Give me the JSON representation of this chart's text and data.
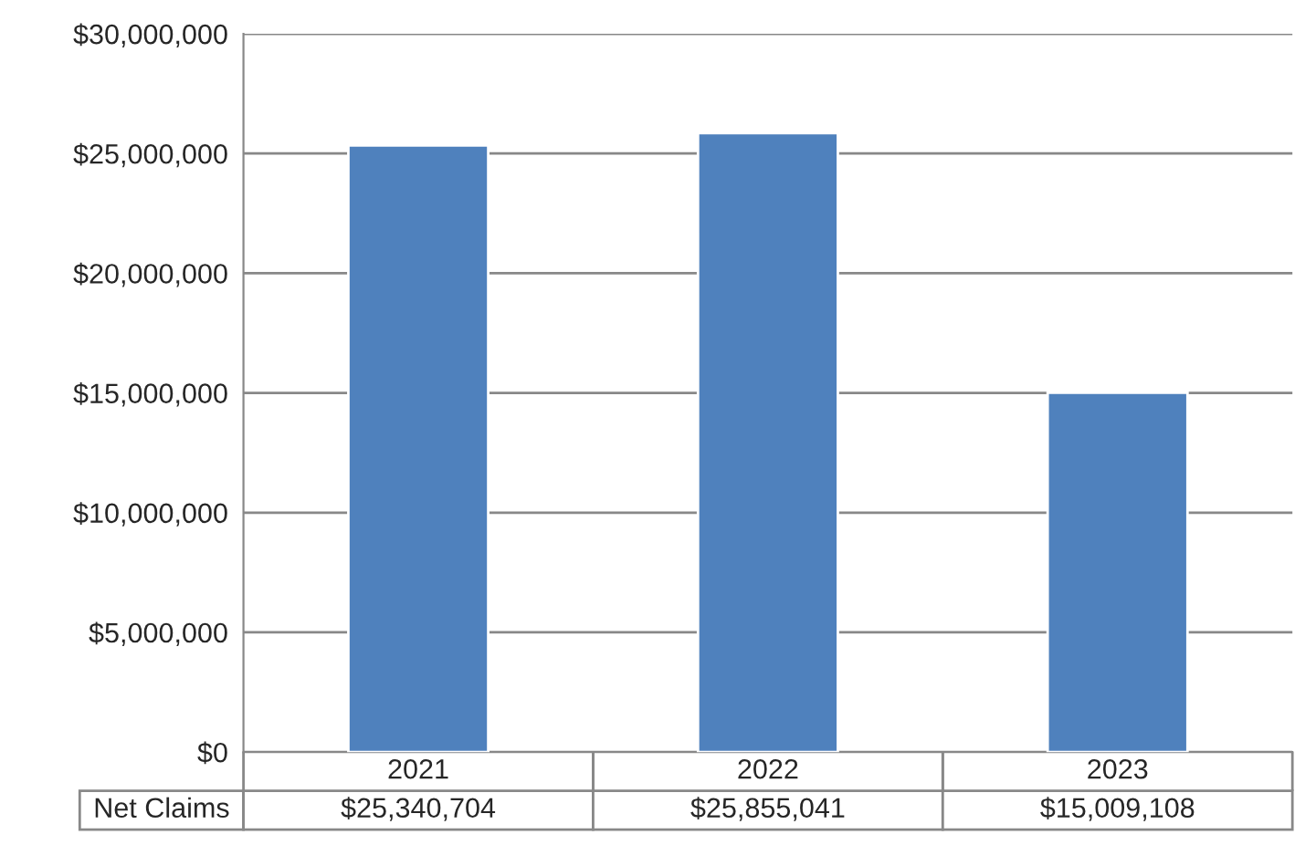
{
  "chart_data": {
    "type": "bar",
    "categories": [
      "2021",
      "2022",
      "2023"
    ],
    "series": [
      {
        "name": "Net Claims",
        "color": "#4f81bd",
        "values": [
          25340704,
          25855041,
          15009108
        ],
        "value_labels": [
          "$25,340,704",
          "$25,855,041",
          "$15,009,108"
        ]
      }
    ],
    "ylim": [
      0,
      30000000
    ],
    "yticks": [
      {
        "value": 0,
        "label": "$0"
      },
      {
        "value": 5000000,
        "label": "$5,000,000"
      },
      {
        "value": 10000000,
        "label": "$10,000,000"
      },
      {
        "value": 15000000,
        "label": "$15,000,000"
      },
      {
        "value": 20000000,
        "label": "$20,000,000"
      },
      {
        "value": 25000000,
        "label": "$25,000,000"
      },
      {
        "value": 30000000,
        "label": "$30,000,000"
      }
    ],
    "grid": "y",
    "legend": false
  }
}
